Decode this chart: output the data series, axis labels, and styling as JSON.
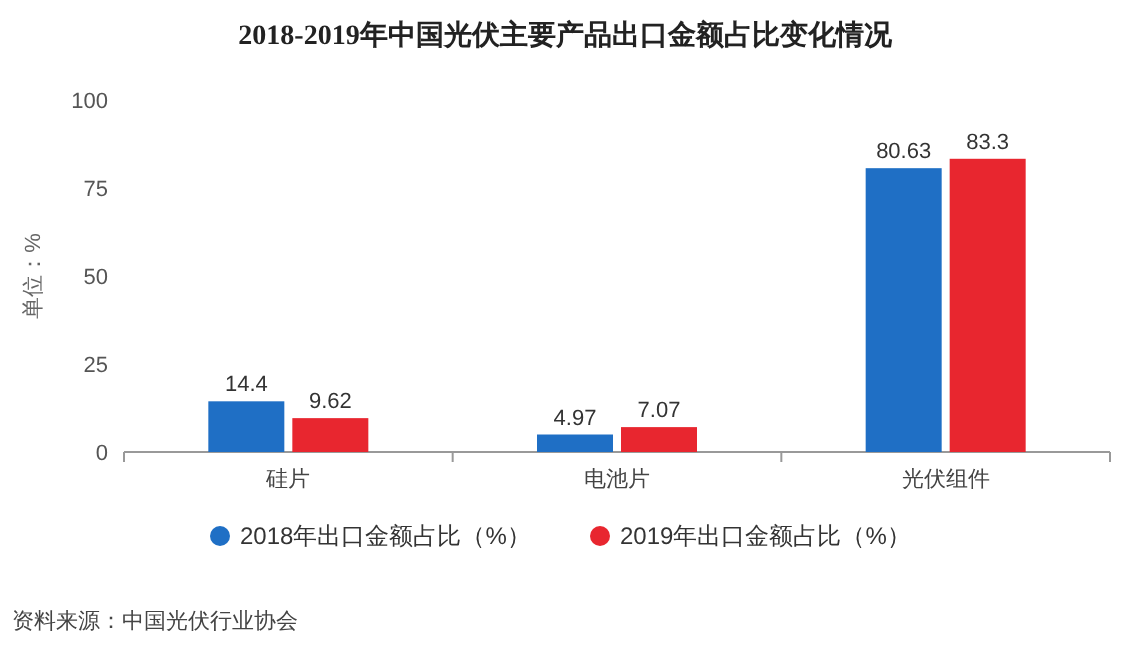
{
  "chart_data": {
    "type": "bar",
    "title": "2018-2019年中国光伏主要产品出口金额占比变化情况",
    "ylabel": "单位：%",
    "categories": [
      "硅片",
      "电池片",
      "光伏组件"
    ],
    "series": [
      {
        "name": "2018年出口金额占比（%）",
        "color": "#1f6fc5",
        "values": [
          14.4,
          4.97,
          80.63
        ]
      },
      {
        "name": "2019年出口金额占比（%）",
        "color": "#e8262f",
        "values": [
          9.62,
          7.07,
          83.3
        ]
      }
    ],
    "ylim": [
      0,
      100
    ],
    "yticks": [
      0,
      25,
      50,
      75,
      100
    ],
    "data_labels": true,
    "legend": "bottom",
    "grid": false,
    "annotations": [
      "资料来源：中国光伏行业协会"
    ]
  }
}
